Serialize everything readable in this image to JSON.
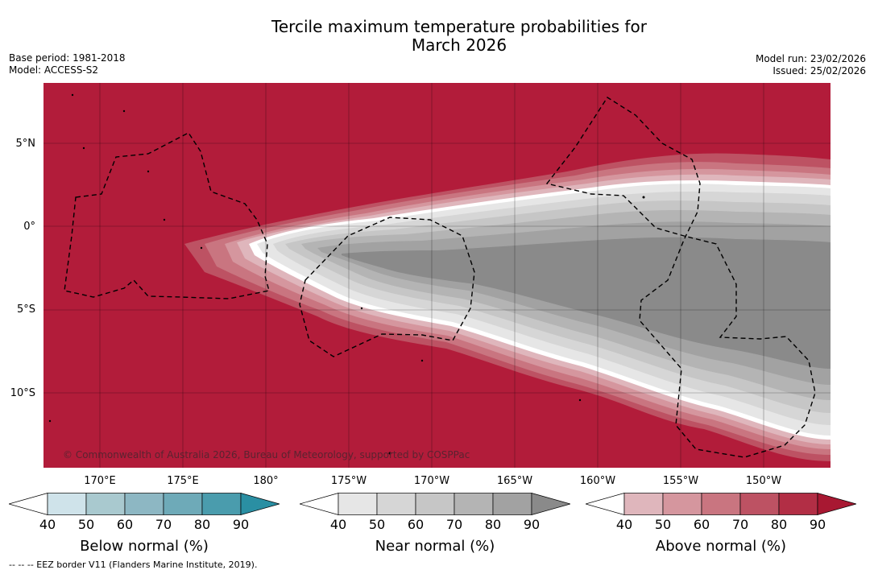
{
  "title_line1": "Tercile maximum temperature probabilities for",
  "title_line2": "March 2026",
  "meta_left": {
    "base_period": "Base period: 1981-2018",
    "model": "Model: ACCESS-S2"
  },
  "meta_right": {
    "model_run": "Model run: 23/02/2026",
    "issued": "Issued: 25/02/2026"
  },
  "map": {
    "latitude_labels": [
      "5°N",
      "0°",
      "5°S",
      "10°S"
    ],
    "longitude_labels": [
      "170°E",
      "175°E",
      "180°",
      "175°W",
      "170°W",
      "165°W",
      "160°W",
      "155°W",
      "150°W"
    ],
    "copyright": "© Commonwealth of Australia 2026, Bureau of Meteorology, supported by COSPPac",
    "background_color": "#b21c3a",
    "gridlines": true
  },
  "colorbars": [
    {
      "title": "Below normal (%)",
      "ticks": [
        "40",
        "50",
        "60",
        "70",
        "80",
        "90"
      ],
      "colors": [
        "#cfe3ea",
        "#a9c9cf",
        "#8db7c3",
        "#6eaab8",
        "#4a9cad",
        "#2a8fa3"
      ]
    },
    {
      "title": "Near normal (%)",
      "ticks": [
        "40",
        "50",
        "60",
        "70",
        "80",
        "90"
      ],
      "colors": [
        "#e6e6e6",
        "#d6d6d6",
        "#c6c6c6",
        "#b4b4b4",
        "#a2a2a2",
        "#8a8a8a"
      ]
    },
    {
      "title": "Above normal (%)",
      "ticks": [
        "40",
        "50",
        "60",
        "70",
        "80",
        "90"
      ],
      "colors": [
        "#dfb6bc",
        "#d5969e",
        "#c97580",
        "#bd5263",
        "#b22e45",
        "#a81832"
      ]
    }
  ],
  "footnote": "--  --  -- EEZ border V11 (Flanders Marine Institute, 2019)."
}
